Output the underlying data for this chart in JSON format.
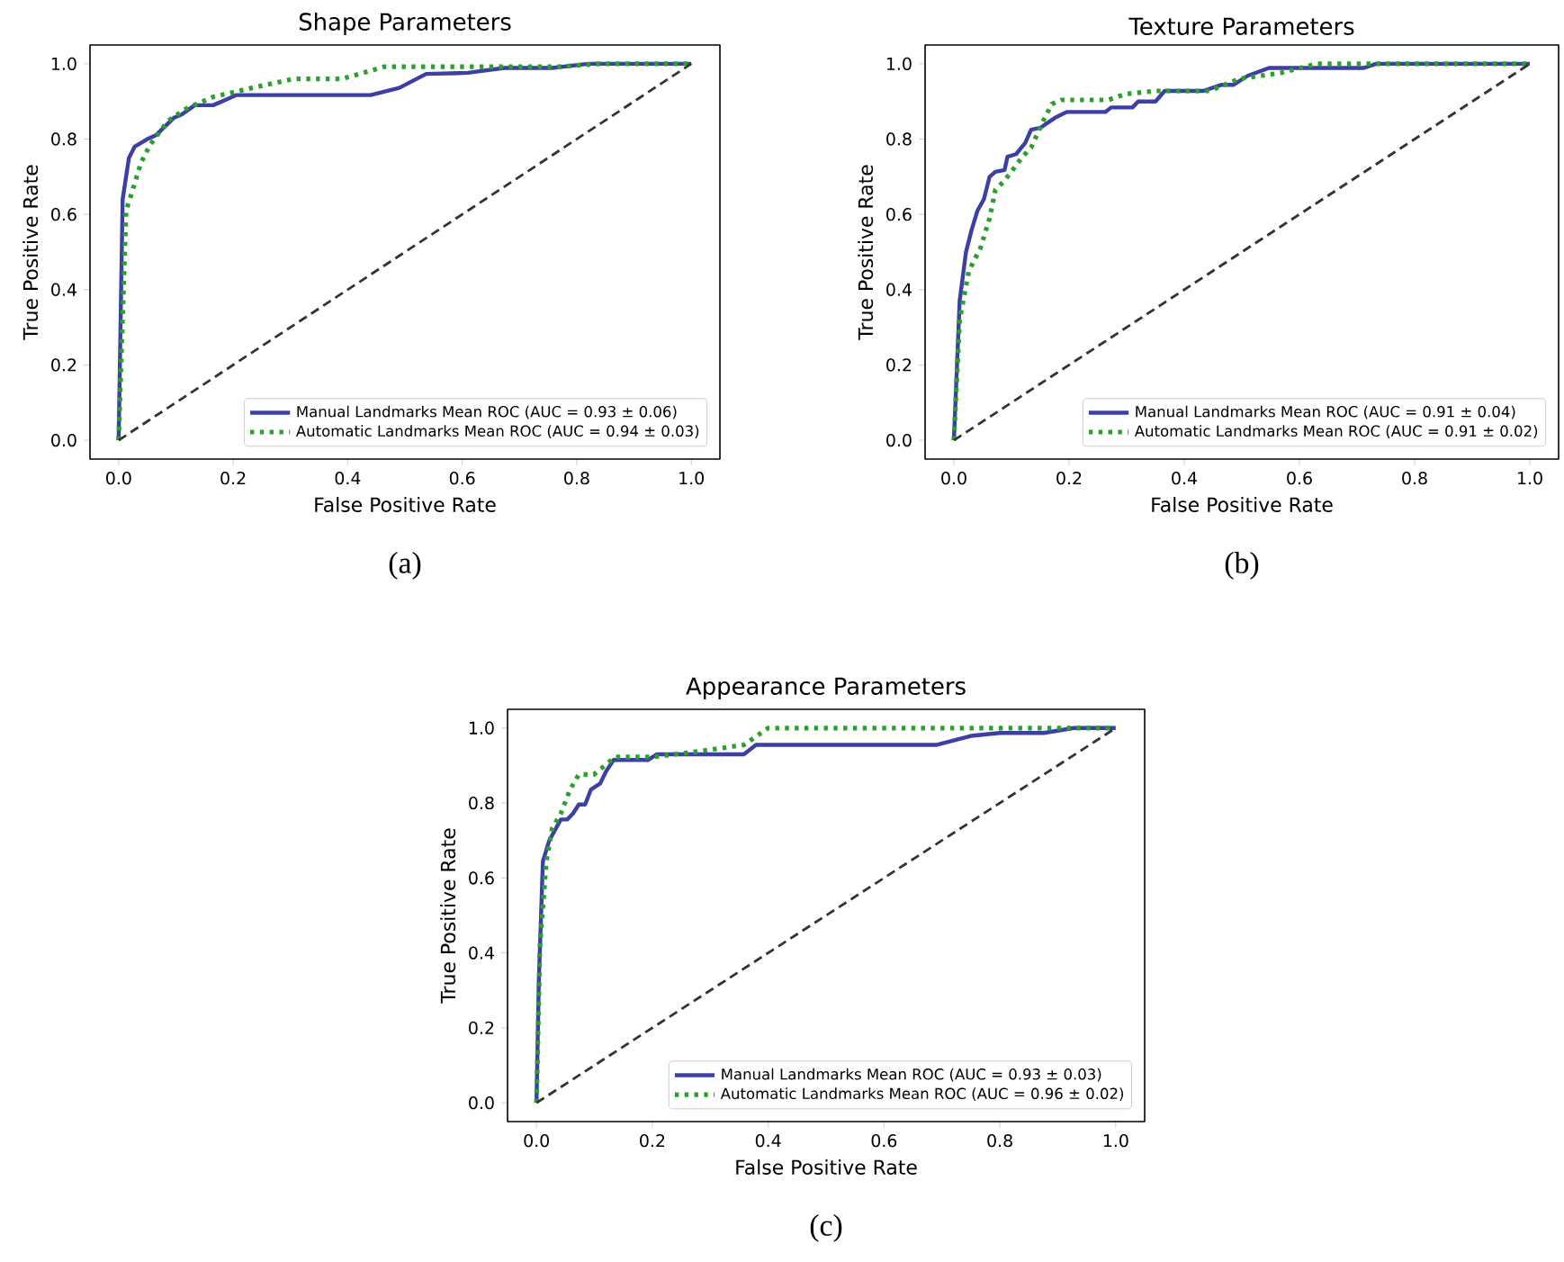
{
  "chart_data": [
    {
      "type": "line",
      "title": "Shape Parameters",
      "xlabel": "False Positive Rate",
      "ylabel": "True Positive Rate",
      "xlim": [
        -0.05,
        1.05
      ],
      "ylim": [
        -0.05,
        1.05
      ],
      "xticks": [
        {
          "value": 0,
          "label": "0.0"
        },
        {
          "value": 0.2,
          "label": "0.2"
        },
        {
          "value": 0.4,
          "label": "0.4"
        },
        {
          "value": 0.6,
          "label": "0.6"
        },
        {
          "value": 0.8,
          "label": "0.8"
        },
        {
          "value": 1,
          "label": "1.0"
        }
      ],
      "yticks": [
        {
          "value": 0,
          "label": "0.0"
        },
        {
          "value": 0.2,
          "label": "0.2"
        },
        {
          "value": 0.4,
          "label": "0.4"
        },
        {
          "value": 0.6,
          "label": "0.6"
        },
        {
          "value": 0.8,
          "label": "0.8"
        },
        {
          "value": 1,
          "label": "1.0"
        }
      ],
      "legend": "bottom right",
      "marker": "none",
      "annotations": [
        "(a)"
      ],
      "series": [
        {
          "name": "Manual Landmarks Mean ROC (AUC = 0.93 ± 0.06)",
          "color": "#3b3fa6",
          "line_style": "solid",
          "x": [
            0,
            0.007,
            0.018,
            0.028,
            0.05,
            0.065,
            0.096,
            0.11,
            0.133,
            0.165,
            0.206,
            0.44,
            0.49,
            0.537,
            0.61,
            0.673,
            0.757,
            0.82,
            1
          ],
          "values": [
            0,
            0.64,
            0.75,
            0.78,
            0.8,
            0.81,
            0.856,
            0.865,
            0.89,
            0.89,
            0.917,
            0.917,
            0.936,
            0.973,
            0.976,
            0.989,
            0.989,
            1,
            1
          ]
        },
        {
          "name": "Automatic Landmarks Mean ROC (AUC = 0.94 ± 0.03)",
          "color": "#2ca02c",
          "line_style": "dotted",
          "x": [
            0,
            0.013,
            0.023,
            0.039,
            0.055,
            0.086,
            0.117,
            0.165,
            0.233,
            0.306,
            0.39,
            0.463,
            0.568,
            0.767,
            0.84,
            1
          ],
          "values": [
            0,
            0.61,
            0.657,
            0.737,
            0.785,
            0.848,
            0.88,
            0.912,
            0.936,
            0.96,
            0.96,
            0.992,
            0.992,
            0.992,
            1,
            1
          ]
        },
        {
          "color": "#333333",
          "line_style": "dashed",
          "x": [
            0,
            1
          ],
          "values": [
            0,
            1
          ]
        }
      ]
    },
    {
      "type": "line",
      "title": "Texture Parameters",
      "xlabel": "False Positive Rate",
      "ylabel": "True Positive Rate",
      "xlim": [
        -0.05,
        1.05
      ],
      "ylim": [
        -0.05,
        1.05
      ],
      "xticks": [
        {
          "value": 0,
          "label": "0.0"
        },
        {
          "value": 0.2,
          "label": "0.2"
        },
        {
          "value": 0.4,
          "label": "0.4"
        },
        {
          "value": 0.6,
          "label": "0.6"
        },
        {
          "value": 0.8,
          "label": "0.8"
        },
        {
          "value": 1,
          "label": "1.0"
        }
      ],
      "yticks": [
        {
          "value": 0,
          "label": "0.0"
        },
        {
          "value": 0.2,
          "label": "0.2"
        },
        {
          "value": 0.4,
          "label": "0.4"
        },
        {
          "value": 0.6,
          "label": "0.6"
        },
        {
          "value": 0.8,
          "label": "0.8"
        },
        {
          "value": 1,
          "label": "1.0"
        }
      ],
      "legend": "bottom right",
      "marker": "none",
      "annotations": [
        "(b)"
      ],
      "series": [
        {
          "name": "Manual Landmarks Mean ROC (AUC = 0.91 ± 0.04)",
          "color": "#3b3fa6",
          "line_style": "solid",
          "x": [
            0,
            0.01,
            0.021,
            0.031,
            0.041,
            0.052,
            0.062,
            0.072,
            0.088,
            0.093,
            0.108,
            0.124,
            0.134,
            0.15,
            0.175,
            0.196,
            0.263,
            0.273,
            0.31,
            0.32,
            0.35,
            0.366,
            0.433,
            0.464,
            0.485,
            0.51,
            0.547,
            0.712,
            0.733,
            1
          ],
          "values": [
            0,
            0.37,
            0.5,
            0.56,
            0.61,
            0.64,
            0.7,
            0.713,
            0.718,
            0.753,
            0.76,
            0.79,
            0.825,
            0.83,
            0.856,
            0.872,
            0.872,
            0.884,
            0.884,
            0.9,
            0.9,
            0.928,
            0.928,
            0.944,
            0.944,
            0.968,
            0.989,
            0.989,
            1,
            1
          ]
        },
        {
          "name": "Automatic Landmarks Mean ROC (AUC = 0.91 ± 0.02)",
          "color": "#2ca02c",
          "line_style": "dotted",
          "x": [
            0,
            0.01,
            0.026,
            0.036,
            0.046,
            0.062,
            0.072,
            0.088,
            0.103,
            0.119,
            0.134,
            0.155,
            0.17,
            0.186,
            0.268,
            0.299,
            0.351,
            0.444,
            0.495,
            0.568,
            0.63,
            1
          ],
          "values": [
            0,
            0.32,
            0.45,
            0.48,
            0.51,
            0.59,
            0.665,
            0.69,
            0.72,
            0.753,
            0.777,
            0.848,
            0.893,
            0.904,
            0.904,
            0.92,
            0.928,
            0.928,
            0.96,
            0.976,
            1,
            1
          ]
        },
        {
          "color": "#333333",
          "line_style": "dashed",
          "x": [
            0,
            1
          ],
          "values": [
            0,
            1
          ]
        }
      ]
    },
    {
      "type": "line",
      "title": "Appearance Parameters",
      "xlabel": "False Positive Rate",
      "ylabel": "True Positive Rate",
      "xlim": [
        -0.05,
        1.05
      ],
      "ylim": [
        -0.05,
        1.05
      ],
      "xticks": [
        {
          "value": 0,
          "label": "0.0"
        },
        {
          "value": 0.2,
          "label": "0.2"
        },
        {
          "value": 0.4,
          "label": "0.4"
        },
        {
          "value": 0.6,
          "label": "0.6"
        },
        {
          "value": 0.8,
          "label": "0.8"
        },
        {
          "value": 1,
          "label": "1.0"
        }
      ],
      "yticks": [
        {
          "value": 0,
          "label": "0.0"
        },
        {
          "value": 0.2,
          "label": "0.2"
        },
        {
          "value": 0.4,
          "label": "0.4"
        },
        {
          "value": 0.6,
          "label": "0.6"
        },
        {
          "value": 0.8,
          "label": "0.8"
        },
        {
          "value": 1,
          "label": "1.0"
        }
      ],
      "legend": "bottom right",
      "marker": "none",
      "annotations": [
        "(c)"
      ],
      "series": [
        {
          "name": "Manual Landmarks Mean ROC (AUC = 0.93 ± 0.03)",
          "color": "#3b3fa6",
          "line_style": "solid",
          "x": [
            0,
            0.004,
            0.011,
            0.022,
            0.042,
            0.053,
            0.063,
            0.073,
            0.084,
            0.094,
            0.11,
            0.12,
            0.133,
            0.193,
            0.208,
            0.358,
            0.379,
            0.69,
            0.75,
            0.8,
            0.876,
            0.928,
            1
          ],
          "values": [
            0,
            0.325,
            0.644,
            0.7,
            0.756,
            0.756,
            0.772,
            0.796,
            0.796,
            0.836,
            0.852,
            0.884,
            0.915,
            0.915,
            0.93,
            0.93,
            0.955,
            0.955,
            0.979,
            0.987,
            0.987,
            1,
            1
          ]
        },
        {
          "name": "Automatic Landmarks Mean ROC (AUC = 0.96 ± 0.02)",
          "color": "#2ca02c",
          "line_style": "dotted",
          "x": [
            0,
            0.006,
            0.017,
            0.027,
            0.042,
            0.058,
            0.073,
            0.099,
            0.136,
            0.203,
            0.286,
            0.358,
            0.4,
            1
          ],
          "values": [
            0,
            0.42,
            0.644,
            0.732,
            0.772,
            0.836,
            0.876,
            0.876,
            0.923,
            0.923,
            0.939,
            0.955,
            1,
            1
          ]
        },
        {
          "color": "#333333",
          "line_style": "dashed",
          "x": [
            0,
            1
          ],
          "values": [
            0,
            1
          ]
        }
      ]
    }
  ]
}
